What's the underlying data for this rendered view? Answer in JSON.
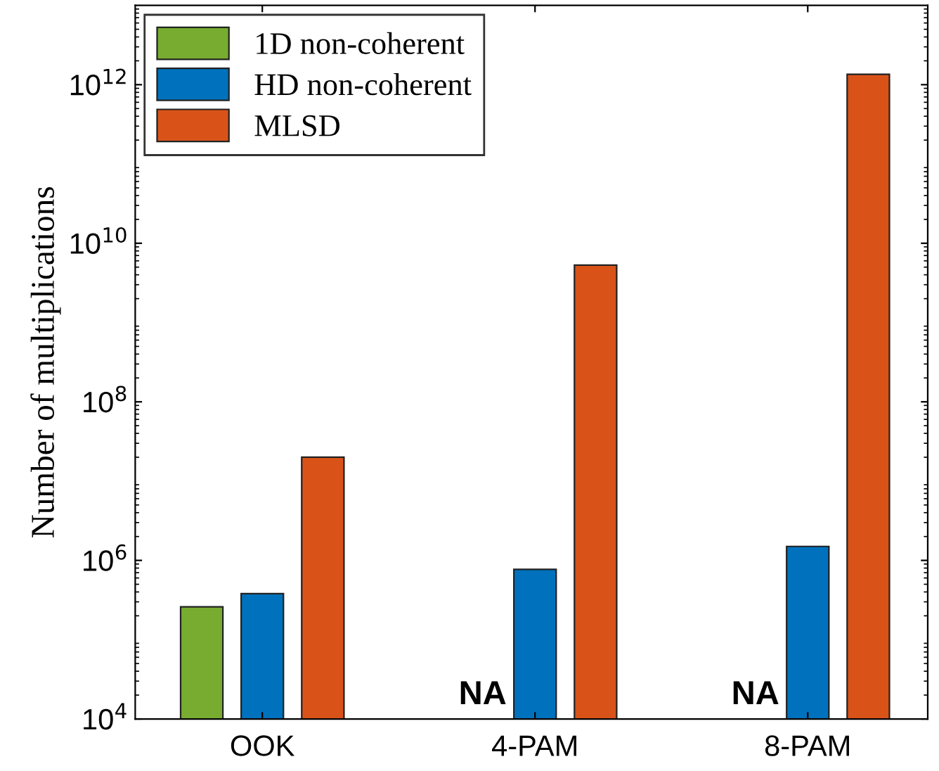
{
  "chart_data": {
    "type": "bar",
    "ylabel": "Number of multiplications",
    "categories": [
      "OOK",
      "4-PAM",
      "8-PAM"
    ],
    "series": [
      {
        "name": "1D non-coherent",
        "color": "#77ac30",
        "values": [
          260000,
          null,
          null
        ]
      },
      {
        "name": "HD non-coherent",
        "color": "#0072bd",
        "values": [
          380000,
          770000,
          1500000
        ]
      },
      {
        "name": "MLSD",
        "color": "#d95319",
        "values": [
          20000000,
          5300000000,
          1350000000000
        ]
      }
    ],
    "log": "y",
    "ylim": [
      10000,
      10000000000000
    ],
    "yticks": [
      {
        "value": 10000,
        "label": "10$^{4}$"
      },
      {
        "value": 1000000,
        "label": "10$^{6}$"
      },
      {
        "value": 100000000,
        "label": "10$^{8}$"
      },
      {
        "value": 10000000000,
        "label": "10$^{10}$"
      },
      {
        "value": 1000000000000,
        "label": "10$^{12}$"
      }
    ],
    "annotations": [
      {
        "text": "NA",
        "x": "4-PAM",
        "y": 10000
      },
      {
        "text": "NA",
        "x": "8-PAM",
        "y": 10000
      }
    ],
    "legend": "top left",
    "grid": false
  }
}
